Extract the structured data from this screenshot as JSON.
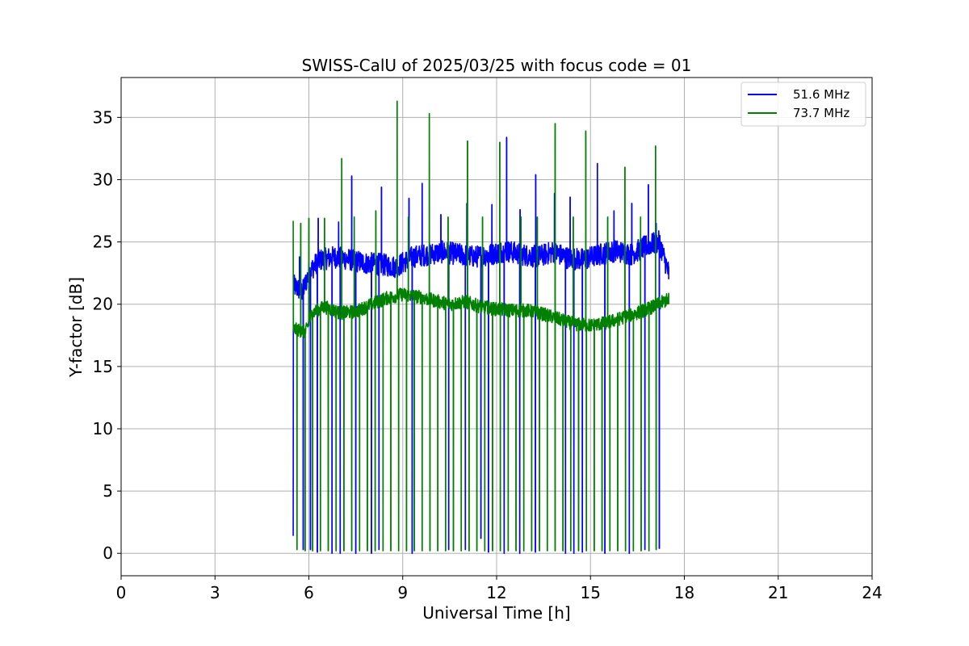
{
  "chart_data": {
    "type": "line",
    "title": "SWISS-CalU of 2025/03/25 with focus code = 01",
    "xlabel": "Universal Time [h]",
    "ylabel": "Y-factor [dB]",
    "xlim": [
      0,
      24
    ],
    "ylim": [
      -1.8,
      38.2
    ],
    "xticks": [
      0,
      3,
      6,
      9,
      12,
      15,
      18,
      21,
      24
    ],
    "yticks": [
      0,
      5,
      10,
      15,
      20,
      25,
      30,
      35
    ],
    "grid": true,
    "legend_position": "top-right",
    "time_range": [
      5.5,
      17.5
    ],
    "series": [
      {
        "name": "51.6 MHz",
        "color": "#0000ff",
        "baseline": [
          [
            5.5,
            21.5
          ],
          [
            5.8,
            21.0
          ],
          [
            6.0,
            22.5
          ],
          [
            6.3,
            23.5
          ],
          [
            6.8,
            23.8
          ],
          [
            7.3,
            23.6
          ],
          [
            7.8,
            23.3
          ],
          [
            8.3,
            23.2
          ],
          [
            8.8,
            23.0
          ],
          [
            9.3,
            23.8
          ],
          [
            9.8,
            24.0
          ],
          [
            10.3,
            24.2
          ],
          [
            10.8,
            24.0
          ],
          [
            11.3,
            23.8
          ],
          [
            11.8,
            24.0
          ],
          [
            12.3,
            24.3
          ],
          [
            12.8,
            24.0
          ],
          [
            13.3,
            23.8
          ],
          [
            13.8,
            24.2
          ],
          [
            14.3,
            23.7
          ],
          [
            14.8,
            23.6
          ],
          [
            15.3,
            24.0
          ],
          [
            15.8,
            24.3
          ],
          [
            16.3,
            24.0
          ],
          [
            16.8,
            24.7
          ],
          [
            17.2,
            25.0
          ],
          [
            17.5,
            22.5
          ]
        ],
        "spike_times": [
          5.7,
          6.3,
          6.95,
          7.37,
          8.32,
          9.2,
          9.62,
          10.22,
          11.05,
          11.85,
          12.32,
          12.75,
          13.25,
          13.85,
          14.35,
          15.22,
          15.75,
          16.32,
          16.85,
          17.1
        ],
        "spike_peaks": [
          23.8,
          26.9,
          26.6,
          30.3,
          29.4,
          28.5,
          29.7,
          27.2,
          28.1,
          28.0,
          33.4,
          27.6,
          30.4,
          28.9,
          28.6,
          31.3,
          27.5,
          28.1,
          29.6,
          26.5
        ],
        "dip_times": [
          5.82,
          6.05,
          6.27,
          6.74,
          7.0,
          7.5,
          8.0,
          8.24,
          9.3,
          10.47,
          11.0,
          11.5,
          11.74,
          12.24,
          12.74,
          13.24,
          14.2,
          14.47,
          14.74,
          15.46,
          16.24,
          16.74,
          17.2
        ],
        "dip_mins": [
          0.3,
          0.3,
          0.1,
          0.0,
          0.0,
          0.0,
          0.0,
          0.3,
          0.0,
          0.3,
          0.3,
          1.2,
          0.1,
          0.0,
          0.0,
          0.1,
          0.0,
          0.0,
          0.1,
          0.0,
          0.0,
          0.3,
          0.4
        ],
        "start_value": 1.4,
        "end_value": 22.0
      },
      {
        "name": "73.7 MHz",
        "color": "#008000",
        "baseline": [
          [
            5.5,
            18.0
          ],
          [
            5.9,
            17.8
          ],
          [
            6.1,
            19.3
          ],
          [
            6.5,
            19.8
          ],
          [
            7.0,
            19.3
          ],
          [
            7.5,
            19.4
          ],
          [
            8.0,
            20.0
          ],
          [
            8.5,
            20.5
          ],
          [
            9.0,
            20.8
          ],
          [
            9.5,
            20.6
          ],
          [
            10.0,
            20.3
          ],
          [
            10.5,
            20.0
          ],
          [
            11.0,
            20.2
          ],
          [
            11.5,
            19.8
          ],
          [
            12.0,
            19.6
          ],
          [
            12.5,
            19.5
          ],
          [
            13.0,
            19.5
          ],
          [
            13.5,
            19.2
          ],
          [
            14.0,
            18.8
          ],
          [
            14.5,
            18.4
          ],
          [
            15.0,
            18.3
          ],
          [
            15.5,
            18.5
          ],
          [
            16.0,
            18.9
          ],
          [
            16.5,
            19.3
          ],
          [
            17.0,
            19.8
          ],
          [
            17.5,
            20.4
          ]
        ],
        "spike_times": [
          5.74,
          6.0,
          6.5,
          7.05,
          7.45,
          8.14,
          8.82,
          9.18,
          9.85,
          10.45,
          11.07,
          11.55,
          12.1,
          12.78,
          13.3,
          13.87,
          14.45,
          14.85,
          15.55,
          16.1,
          16.6,
          17.08
        ],
        "spike_peaks": [
          26.5,
          26.9,
          26.9,
          31.7,
          27.0,
          27.5,
          36.3,
          27.0,
          35.3,
          27.0,
          33.1,
          27.0,
          33.0,
          27.0,
          27.0,
          34.5,
          27.0,
          33.9,
          27.0,
          31.0,
          27.0,
          32.7
        ],
        "dip_times": [
          5.62,
          5.88,
          6.12,
          6.37,
          6.62,
          6.87,
          7.12,
          7.37,
          7.62,
          7.87,
          8.12,
          8.37,
          8.62,
          8.87,
          9.12,
          9.37,
          9.62,
          9.87,
          10.12,
          10.37,
          10.62,
          10.87,
          11.12,
          11.37,
          11.62,
          11.87,
          12.12,
          12.37,
          12.62,
          12.87,
          13.12,
          13.37,
          13.62,
          13.87,
          14.12,
          14.37,
          14.62,
          14.87,
          15.12,
          15.37,
          15.62,
          15.87,
          16.12,
          16.37,
          16.62,
          16.87,
          17.1
        ],
        "dip_mins": [
          0.3,
          0.2,
          0.2,
          0.2,
          0.2,
          0.2,
          0.2,
          0.2,
          0.2,
          0.2,
          0.2,
          0.2,
          0.2,
          0.2,
          0.2,
          0.2,
          0.2,
          0.2,
          0.2,
          0.2,
          0.2,
          0.2,
          0.2,
          0.2,
          0.2,
          0.2,
          0.2,
          0.2,
          0.2,
          0.2,
          0.2,
          0.2,
          0.2,
          0.2,
          0.2,
          0.2,
          0.2,
          0.2,
          0.2,
          0.2,
          0.2,
          0.2,
          0.2,
          0.2,
          0.2,
          0.2,
          0.3
        ],
        "start_value": 26.7,
        "end_value": 20.0
      }
    ]
  }
}
